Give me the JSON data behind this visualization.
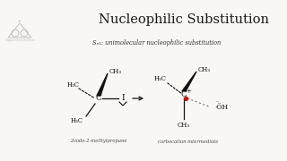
{
  "title": "Nucleophilic Substitution",
  "subtitle": "Sₙ₁: unimolecular nucleophilic substitution",
  "bg_color": "#f8f7f4",
  "title_color": "#1a1a1a",
  "subtitle_color": "#333333",
  "title_fontsize": 11,
  "subtitle_fontsize": 5.0,
  "label1": "2-iodo-2-methylpropane",
  "label2": "carbocation intermediate",
  "arrow_color": "#111111",
  "bond_color": "#111111",
  "dot_color": "#cc1111",
  "logo_color": "#bbbbbb",
  "text_color": "#222222"
}
